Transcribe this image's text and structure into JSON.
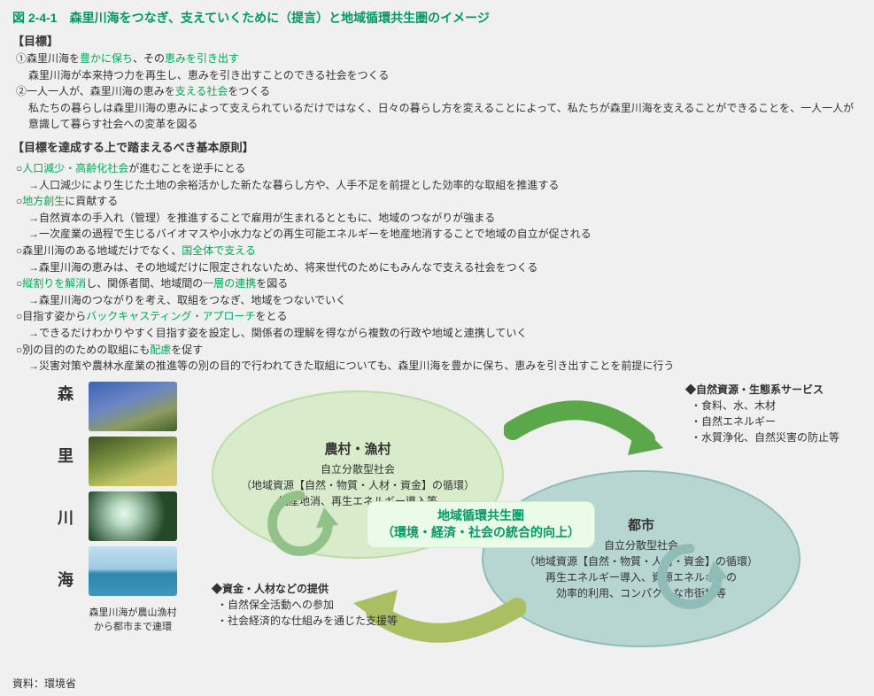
{
  "figure_title": "図 2-4-1　森里川海をつなぎ、支えていくために（提言）と地域循環共生圏のイメージ",
  "goals_heading": "【目標】",
  "goals": [
    {
      "prefix": "①森里川海を",
      "hl1": "豊かに保ち",
      "mid": "、その",
      "hl2": "恵みを引き出す",
      "suffix": "",
      "sub": "森里川海が本来持つ力を再生し、恵みを引き出すことのできる社会をつくる"
    },
    {
      "prefix": "②一人一人が、森里川海の恵みを",
      "hl1": "支える社会",
      "mid": "をつくる",
      "hl2": "",
      "suffix": "",
      "sub": "私たちの暮らしは森里川海の恵みによって支えられているだけではなく、日々の暮らし方を変えることによって、私たちが森里川海を支えることができることを、一人一人が意識して暮らす社会への変革を図る"
    }
  ],
  "principles_heading": "【目標を達成する上で踏まえるべき基本原則】",
  "principles": [
    {
      "p": "○",
      "hl": "人口減少・高齢化社会",
      "t": "が進むことを逆手にとる",
      "subs": [
        "→人口減少により生じた土地の余裕活かした新たな暮らし方や、人手不足を前提とした効率的な取組を推進する"
      ]
    },
    {
      "p": "○",
      "hl": "地方創生",
      "t": "に貢献する",
      "subs": [
        "→自然資本の手入れ（管理）を推進することで雇用が生まれるとともに、地域のつながりが強まる",
        "→一次産業の過程で生じるバイオマスや小水力などの再生可能エネルギーを地産地消することで地域の自立が促される"
      ]
    },
    {
      "p": "○森里川海のある地域だけでなく、",
      "hl": "国全体で支える",
      "t": "",
      "subs": [
        "→森里川海の恵みは、その地域だけに限定されないため、将来世代のためにもみんなで支える社会をつくる"
      ]
    },
    {
      "p": "○",
      "hl": "縦割りを解消",
      "t": "し、関係者間、地域間の",
      "hl2": "一層の連携",
      "t2": "を図る",
      "subs": [
        "→森里川海のつながりを考え、取組をつなぎ、地域をつないでいく"
      ]
    },
    {
      "p": "○目指す姿から",
      "hl": "バックキャスティング・アプローチ",
      "t": "をとる",
      "subs": [
        "→できるだけわかりやすく目指す姿を設定し、関係者の理解を得ながら複数の行政や地域と連携していく"
      ]
    },
    {
      "p": "○別の目的のための取組にも",
      "hl": "配慮",
      "t": "を促す",
      "subs": [
        "→災害対策や農林水産業の推進等の別の目的で行われてきた取組についても、森里川海を豊かに保ち、恵みを引き出すことを前提に行う"
      ]
    }
  ],
  "side_labels": [
    "森",
    "里",
    "川",
    "海"
  ],
  "thumbs": [
    {
      "bg": "linear-gradient(160deg,#3e63b3 0%,#6b86c4 40%,#8c9c5e 70%,#43612a 100%)"
    },
    {
      "bg": "linear-gradient(160deg,#3d5324 0%,#7c9140 40%,#c2c469 70%,#dbc66f 100%)"
    },
    {
      "bg": "radial-gradient(circle at 40% 45%,#eaf6ee 0%,#b6d9c1 20%,#234928 70%)"
    },
    {
      "bg": "linear-gradient(180deg,#bfe0f0 0%,#9dcbe1 45%,#2e86ad 55%,#3f97bd 100%)"
    }
  ],
  "thumb_caption": "森里川海が農山漁村から都市まで連環",
  "ellipse_left": {
    "title": "農村・漁村",
    "lines": [
      "自立分散型社会",
      "（地域資源【自然・物質・人材・資金】の循環）",
      "地産地消、再生エネルギー導入等"
    ],
    "fill": "#d8eccb",
    "stroke": "#bcdca6"
  },
  "ellipse_right": {
    "title": "都市",
    "lines": [
      "自立分散型社会",
      "（地域資源【自然・物質・人材・資金】の循環）",
      "再生エネルギー導入、資源エネルギーの",
      "効率的利用、コンパクトな市街地等"
    ],
    "fill": "#b7d6d2",
    "stroke": "#8fbcb6"
  },
  "center_label": {
    "l1": "地域循環共生圏",
    "l2": "（環境・経済・社会の統合的向上）"
  },
  "note_top_right": {
    "head": "◆自然資源・生態系サービス",
    "items": [
      "食料、水、木材",
      "自然エネルギー",
      "水質浄化、自然災害の防止等"
    ]
  },
  "note_bottom_left": {
    "head": "◆資金・人材などの提供",
    "items": [
      "自然保全活動への参加",
      "社会経済的な仕組みを通じた支援等"
    ]
  },
  "source": "資料：環境省",
  "colors": {
    "accent": "#009966",
    "cycle": "#7fb77e",
    "arrow_green": "#5aa84a",
    "arrow_olive": "#a9bf62"
  }
}
